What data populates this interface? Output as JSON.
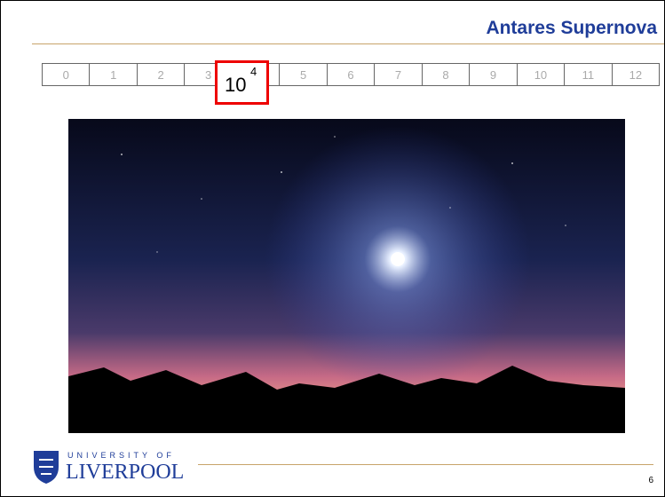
{
  "header": {
    "title": "Antares Supernova"
  },
  "scale": {
    "left": [
      "0",
      "1",
      "2",
      "3"
    ],
    "highlight": {
      "base": "10",
      "exponent": "4"
    },
    "right": [
      "5",
      "6",
      "7",
      "8",
      "9",
      "10",
      "11",
      "12"
    ]
  },
  "footer": {
    "logo_top": "UNIVERSITY OF",
    "logo_bottom": "LIVERPOOL",
    "page_number": "6"
  }
}
